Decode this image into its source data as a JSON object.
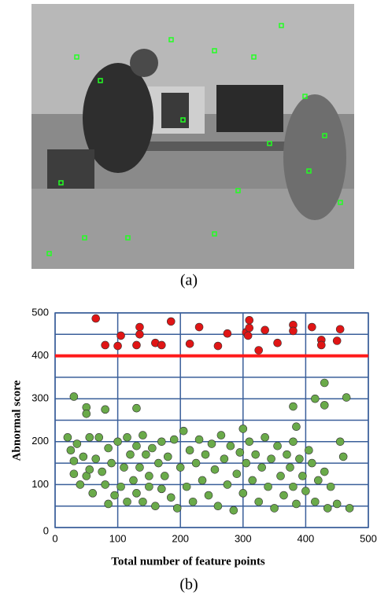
{
  "caption_a": "(a)",
  "caption_b": "(b)",
  "chart_data": {
    "type": "scatter",
    "xlabel": "Total number of feature points",
    "ylabel": "Abnormal score",
    "xlim": [
      0,
      500
    ],
    "ylim": [
      0,
      500
    ],
    "xticks": [
      0,
      100,
      200,
      300,
      400,
      500
    ],
    "yticks": [
      0,
      100,
      200,
      300,
      400,
      500
    ],
    "y_minor_grid": [
      50,
      150,
      250,
      350,
      450
    ],
    "grid": true,
    "grid_color": "#3a5f9a",
    "threshold": 400,
    "threshold_color": "#ff1a1a",
    "series": [
      {
        "color": "#e01515",
        "x": [
          65,
          80,
          100,
          105,
          130,
          135,
          135,
          160,
          170,
          185,
          215,
          230,
          260,
          275,
          305,
          310,
          308,
          310,
          325,
          335,
          355,
          380,
          380,
          410,
          425,
          425,
          450,
          455
        ],
        "values": [
          487,
          425,
          423,
          447,
          425,
          467,
          450,
          430,
          425,
          480,
          428,
          467,
          423,
          452,
          455,
          483,
          447,
          465,
          413,
          460,
          430,
          472,
          458,
          467,
          437,
          425,
          435,
          462
        ]
      },
      {
        "color": "#6aaa4a",
        "x": [
          30,
          50,
          50,
          80,
          130,
          385,
          380,
          415,
          430,
          430,
          465,
          20,
          25,
          30,
          30,
          35,
          40,
          45,
          50,
          55,
          55,
          60,
          65,
          70,
          75,
          80,
          85,
          85,
          90,
          95,
          100,
          105,
          110,
          115,
          115,
          120,
          125,
          130,
          130,
          135,
          140,
          140,
          145,
          150,
          150,
          155,
          160,
          165,
          170,
          170,
          175,
          180,
          185,
          190,
          195,
          200,
          205,
          210,
          215,
          220,
          225,
          230,
          235,
          240,
          245,
          250,
          255,
          260,
          265,
          270,
          275,
          280,
          285,
          290,
          295,
          300,
          300,
          305,
          310,
          315,
          320,
          325,
          330,
          335,
          340,
          345,
          350,
          355,
          360,
          365,
          370,
          375,
          380,
          380,
          385,
          390,
          395,
          400,
          405,
          410,
          415,
          420,
          430,
          435,
          440,
          450,
          455,
          460,
          470
        ],
        "values": [
          305,
          280,
          265,
          275,
          278,
          235,
          282,
          300,
          337,
          285,
          303,
          210,
          180,
          155,
          125,
          195,
          100,
          165,
          120,
          210,
          135,
          80,
          160,
          210,
          130,
          100,
          185,
          55,
          150,
          75,
          200,
          95,
          140,
          210,
          60,
          170,
          110,
          190,
          80,
          140,
          215,
          60,
          170,
          120,
          95,
          185,
          50,
          150,
          200,
          90,
          120,
          165,
          70,
          205,
          45,
          140,
          225,
          95,
          180,
          60,
          150,
          205,
          110,
          170,
          75,
          195,
          135,
          50,
          215,
          160,
          100,
          190,
          40,
          125,
          175,
          230,
          80,
          150,
          200,
          110,
          170,
          60,
          140,
          210,
          95,
          160,
          45,
          190,
          120,
          75,
          170,
          140,
          200,
          95,
          55,
          160,
          120,
          85,
          180,
          150,
          60,
          110,
          130,
          45,
          95,
          55,
          200,
          165,
          45
        ]
      }
    ]
  }
}
